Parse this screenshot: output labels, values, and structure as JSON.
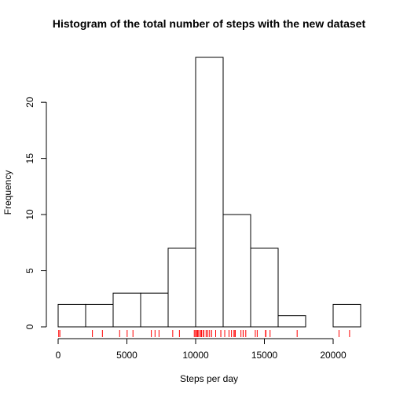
{
  "chart_data": {
    "type": "bar",
    "title": "Histogram of the total number of steps with the new dataset",
    "xlabel": "Steps per day",
    "ylabel": "Frequency",
    "xlim": [
      0,
      22000
    ],
    "ylim": [
      0,
      24
    ],
    "bin_edges": [
      0,
      2000,
      4000,
      6000,
      8000,
      10000,
      12000,
      14000,
      16000,
      18000,
      20000,
      22000
    ],
    "values": [
      2,
      2,
      3,
      3,
      7,
      24,
      10,
      7,
      1,
      0,
      2
    ],
    "x_ticks": [
      0,
      5000,
      10000,
      15000,
      20000
    ],
    "x_tick_labels": [
      "0",
      "5000",
      "10000",
      "15000",
      "20000"
    ],
    "y_ticks": [
      0,
      5,
      10,
      15,
      20
    ],
    "y_tick_labels": [
      "0",
      "5",
      "10",
      "15",
      "20"
    ],
    "rug": {
      "color": "#ff0000",
      "values": [
        41,
        126,
        2492,
        3219,
        4472,
        5018,
        5441,
        6778,
        7047,
        7336,
        8334,
        8821,
        9900,
        10000,
        10056,
        10139,
        10183,
        10304,
        10395,
        10439,
        10571,
        10600,
        10765,
        10766,
        10890,
        11015,
        11162,
        11458,
        11829,
        11834,
        12116,
        12426,
        12608,
        12787,
        12811,
        12883,
        13294,
        13452,
        13460,
        13646,
        14339,
        14478,
        15084,
        15098,
        15110,
        15414,
        17382,
        20427,
        21194
      ]
    }
  }
}
